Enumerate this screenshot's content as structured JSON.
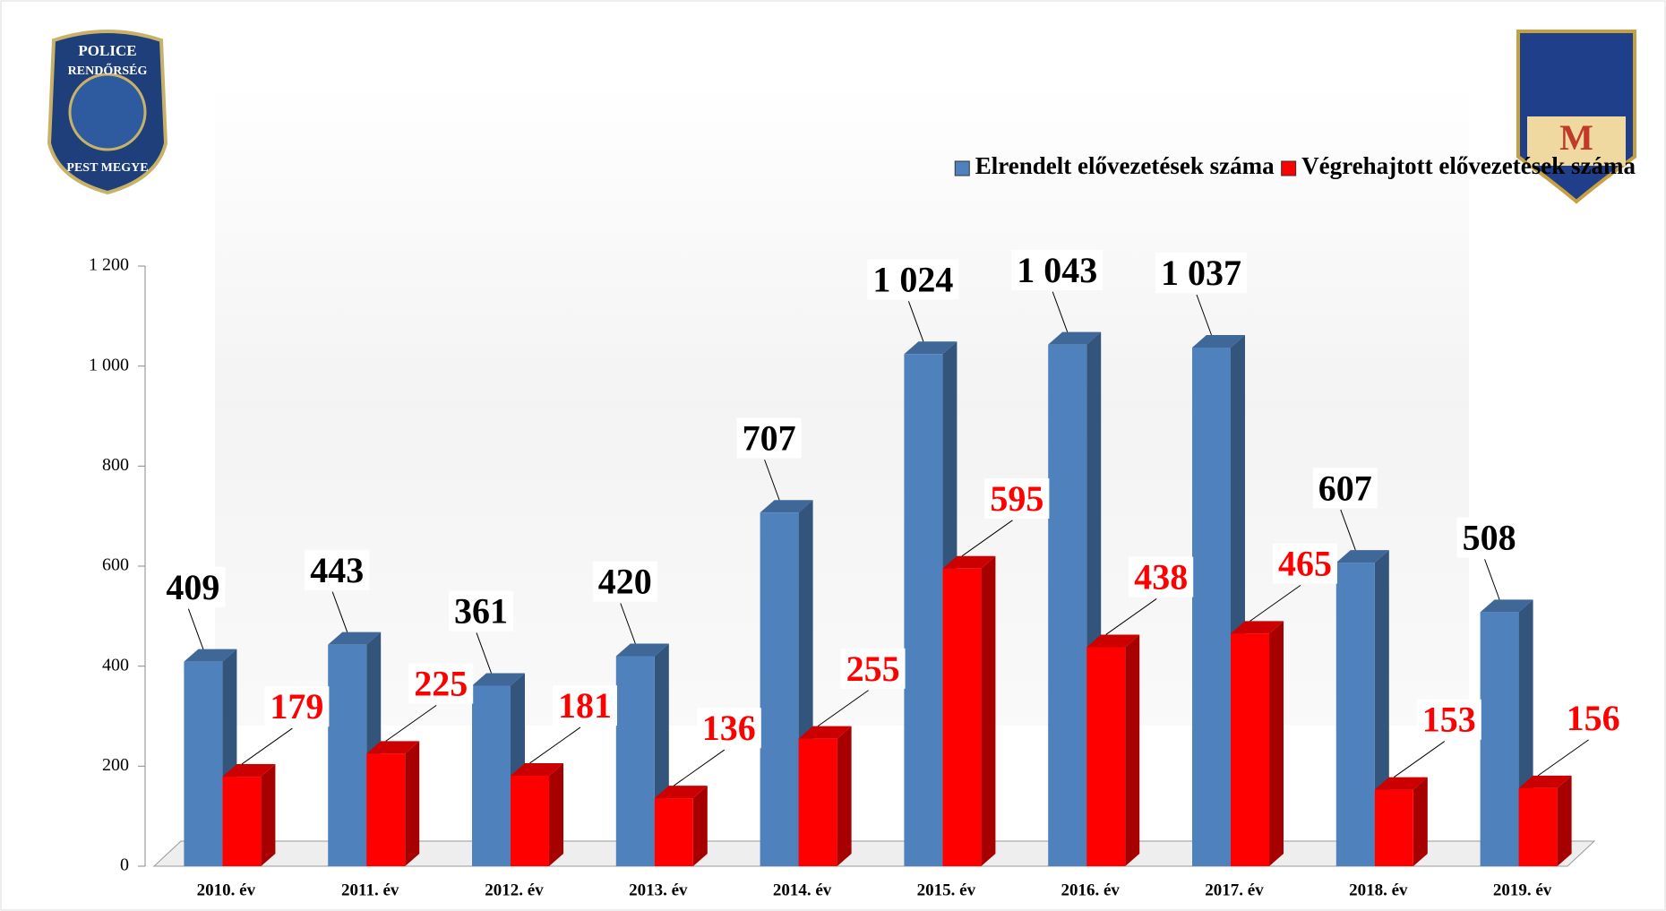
{
  "chart_data": {
    "type": "bar3d",
    "categories": [
      "2010. év",
      "2011. év",
      "2012. év",
      "2013. év",
      "2014. év",
      "2015. év",
      "2016. év",
      "2017. év",
      "2018. év",
      "2019. év"
    ],
    "series": [
      {
        "name": "Elrendelt elővezetések száma",
        "color": "#4f81bd",
        "values": [
          409,
          443,
          361,
          420,
          707,
          1024,
          1043,
          1037,
          607,
          508
        ],
        "value_labels": [
          "409",
          "443",
          "361",
          "420",
          "707",
          "1 024",
          "1 043",
          "1 037",
          "607",
          "508"
        ]
      },
      {
        "name": "Végrehajtott elővezetések száma",
        "color": "#ff0000",
        "values": [
          179,
          225,
          181,
          136,
          255,
          595,
          438,
          465,
          153,
          156
        ]
      }
    ],
    "ylim": [
      0,
      1200
    ],
    "yticks": [
      0,
      200,
      400,
      600,
      800,
      {
        "value": 1000,
        "label": "1 000"
      },
      {
        "value": 1200,
        "label": "1 200"
      }
    ],
    "legend": "top-right"
  },
  "logos": {
    "left": [
      "POLICE",
      "RENDŐRSÉG",
      "PEST MEGYE"
    ],
    "right": "M"
  }
}
